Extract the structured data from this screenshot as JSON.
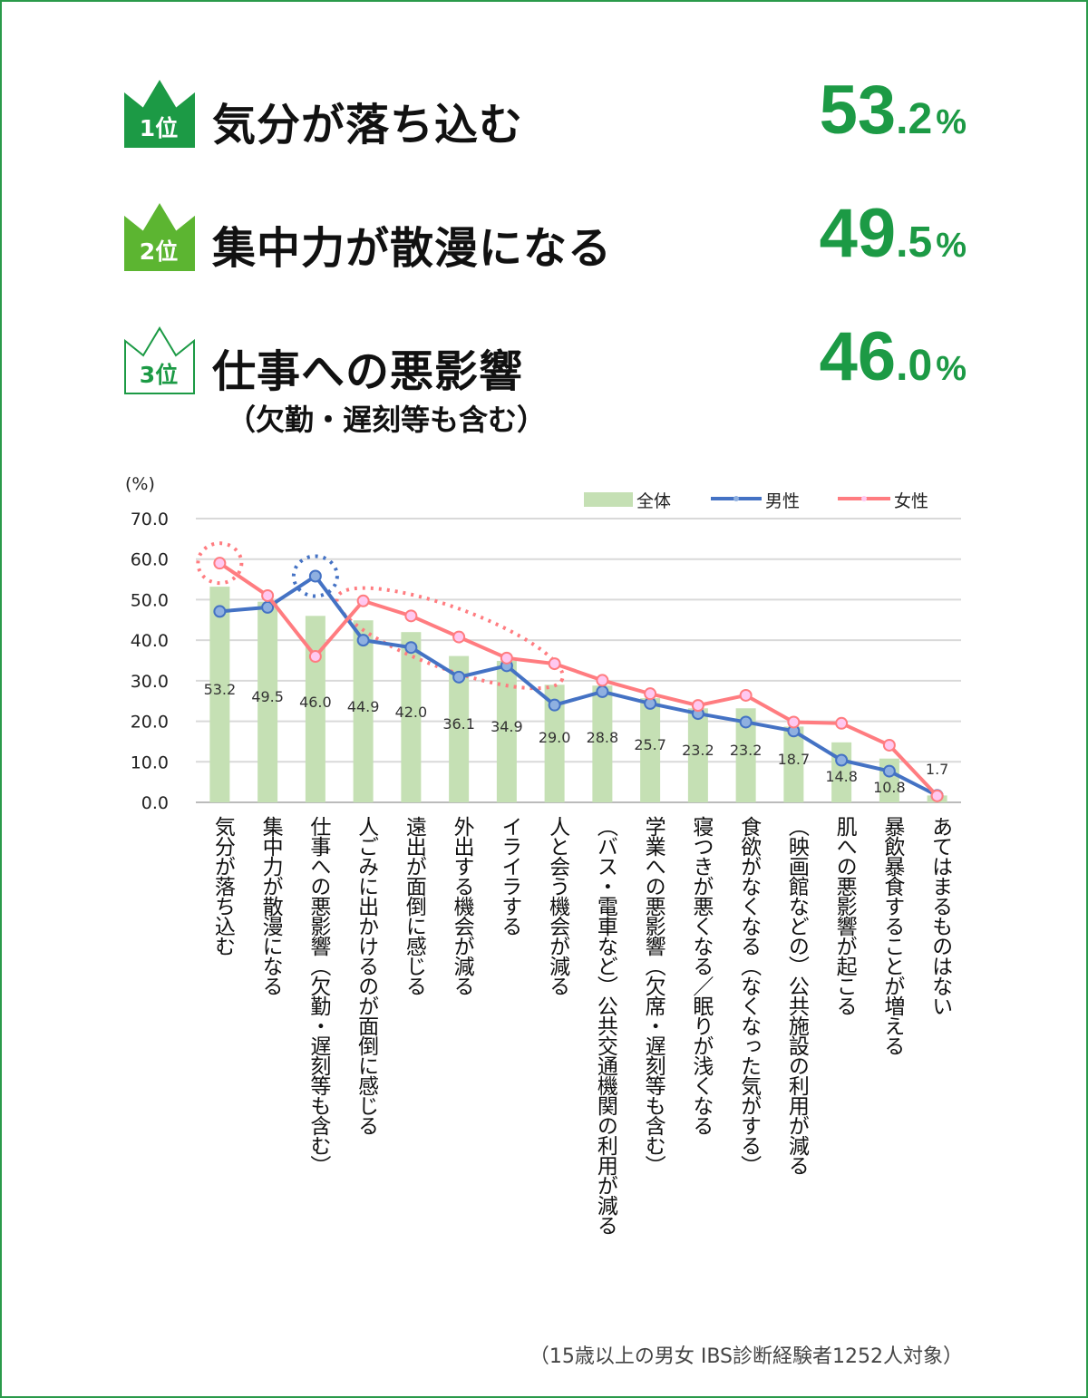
{
  "rankings": [
    {
      "rank_label": "1位",
      "title": "気分が落ち込む",
      "subtitle": "",
      "value_int": "53",
      "value_dec": ".2",
      "unit": "%",
      "crown_style": "filled-dark"
    },
    {
      "rank_label": "2位",
      "title": "集中力が散漫になる",
      "subtitle": "",
      "value_int": "49",
      "value_dec": ".5",
      "unit": "%",
      "crown_style": "filled-light"
    },
    {
      "rank_label": "3位",
      "title": "仕事への悪影響",
      "subtitle": "（欠勤・遅刻等も含む）",
      "value_int": "46",
      "value_dec": ".0",
      "unit": "%",
      "crown_style": "outline"
    }
  ],
  "colors": {
    "frame": "#2a9a4a",
    "accent": "#1c9a45",
    "bar": "#c5e0b4",
    "male": "#4472c4",
    "female": "#ff7c80"
  },
  "note": "（15歳以上の男女 IBS診断経験者1252人対象）",
  "chart_data": {
    "type": "bar+line",
    "ylabel": "(%)",
    "ylim": [
      0,
      70
    ],
    "yticks": [
      "0.0",
      "10.0",
      "20.0",
      "30.0",
      "40.0",
      "50.0",
      "60.0",
      "70.0"
    ],
    "grid": true,
    "legend_position": "top-right",
    "categories": [
      "気分が落ち込む",
      "集中力が散漫になる",
      "仕事への悪影響（欠勤・遅刻等も含む）",
      "人ごみに出かけるのが面倒に感じる",
      "遠出が面倒に感じる",
      "外出する機会が減る",
      "イライラする",
      "人と会う機会が減る",
      "（バス・電車など）公共交通機関の利用が減る",
      "学業への悪影響（欠席・遅刻等も含む）",
      "寝つきが悪くなる／眠りが浅くなる",
      "食欲がなくなる（なくなった気がする）",
      "（映画館などの）公共施設の利用が減る",
      "肌への悪影響が起こる",
      "暴飲暴食することが増える",
      "あてはまるものはない"
    ],
    "series": [
      {
        "name": "全体",
        "type": "bar",
        "values": [
          53.2,
          49.5,
          46.0,
          44.9,
          42.0,
          36.1,
          34.9,
          29.0,
          28.8,
          25.7,
          23.2,
          23.2,
          18.7,
          14.8,
          10.8,
          1.7
        ],
        "labels": [
          "53.2",
          "49.5",
          "46.0",
          "44.9",
          "42.0",
          "36.1",
          "34.9",
          "29.0",
          "28.8",
          "25.7",
          "23.2",
          "23.2",
          "18.7",
          "14.8",
          "10.8",
          "1.7"
        ]
      },
      {
        "name": "男性",
        "type": "line",
        "values": [
          47.1,
          48.1,
          55.8,
          40.0,
          38.2,
          30.9,
          33.7,
          24.0,
          27.3,
          24.4,
          21.9,
          19.8,
          17.6,
          10.4,
          7.7,
          1.7
        ]
      },
      {
        "name": "女性",
        "type": "line",
        "values": [
          59.0,
          51.0,
          36.0,
          49.7,
          46.0,
          40.8,
          35.6,
          34.2,
          30.1,
          26.8,
          23.9,
          26.4,
          19.8,
          19.5,
          14.1,
          1.6
        ]
      }
    ]
  }
}
